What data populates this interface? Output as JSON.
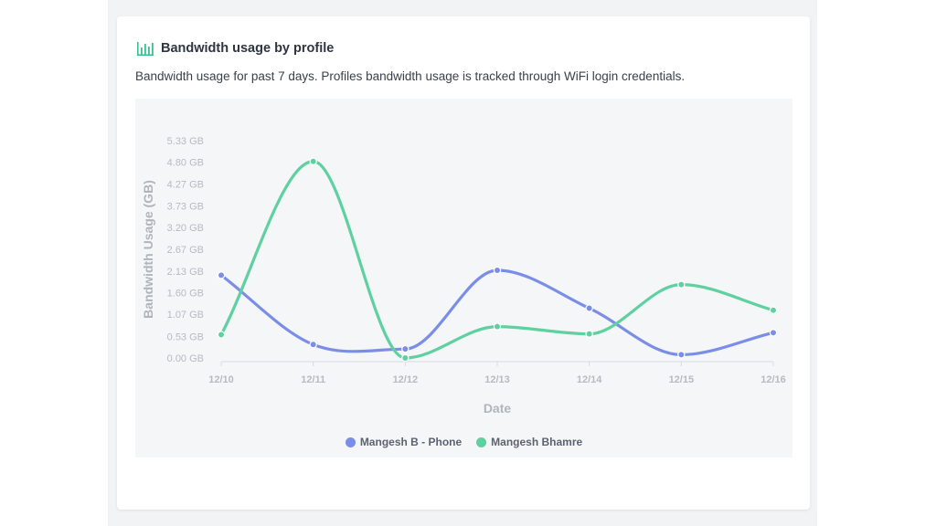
{
  "card": {
    "icon": "bar-chart-icon",
    "title": "Bandwidth usage by profile",
    "description": "Bandwidth usage for past 7 days. Profiles bandwidth usage is tracked through WiFi login credentials."
  },
  "colors": {
    "phone": "#7a8ee8",
    "bhamre": "#5fd0a0",
    "accent": "#3fbf8f"
  },
  "chart_data": {
    "type": "line",
    "categories": [
      "12/10",
      "12/11",
      "12/12",
      "12/13",
      "12/14",
      "12/15",
      "12/16"
    ],
    "xlabel": "Date",
    "ylabel": "Bandwidth Usage (GB)",
    "ylim": [
      0,
      5.33
    ],
    "yticks": [
      "0.00 GB",
      "0.53 GB",
      "1.07 GB",
      "1.60 GB",
      "2.13 GB",
      "2.67 GB",
      "3.20 GB",
      "3.73 GB",
      "4.27 GB",
      "4.80 GB",
      "5.33 GB"
    ],
    "ytick_values": [
      0,
      0.53,
      1.07,
      1.6,
      2.13,
      2.67,
      3.2,
      3.73,
      4.27,
      4.8,
      5.33
    ],
    "grid": false,
    "legend_position": "bottom-center",
    "series": [
      {
        "name": "Mangesh B - Phone",
        "values": [
          2.03,
          0.33,
          0.22,
          2.15,
          1.22,
          0.08,
          0.62
        ]
      },
      {
        "name": "Mangesh Bhamre",
        "values": [
          0.57,
          4.82,
          0.0,
          0.77,
          0.59,
          1.8,
          1.17
        ]
      }
    ]
  }
}
